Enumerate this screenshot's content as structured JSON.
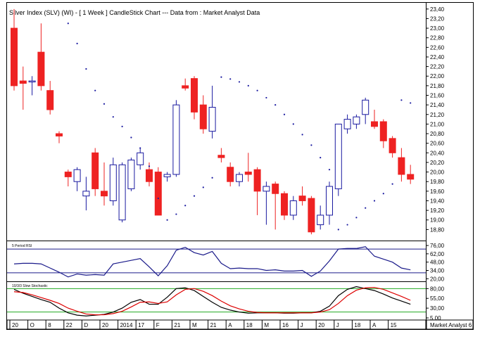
{
  "header": {
    "title": "Silver Index (SLV) (WI) -  [ 1 Week ] CandleStick Chart --- Data from : Market Analyst Data"
  },
  "colors": {
    "bull": "#1a1aa0",
    "bear": "#ee2222",
    "dots": "#1a1aa0",
    "rsi": "#1a1a8a",
    "rsi_levels": "#1a1a8a",
    "stoch_k": "#000000",
    "stoch_d": "#dd0000",
    "stoch_levels": "#22aa22",
    "border": "#000000"
  },
  "chart_data": [
    {
      "type": "candlestick",
      "ylim": [
        18.6,
        23.5
      ],
      "y_ticks": [
        "23,40",
        "23,20",
        "23,00",
        "22,80",
        "22,60",
        "22,40",
        "22,20",
        "22,00",
        "21,80",
        "21,60",
        "21,40",
        "21,20",
        "21,00",
        "20,80",
        "20,60",
        "20,40",
        "20,20",
        "20,00",
        "19,80",
        "19,60",
        "19,40",
        "19,20",
        "19,00",
        "18,80"
      ],
      "x_labels": [
        "20",
        "O",
        "8",
        "22",
        "D",
        "20",
        "2014",
        "17",
        "F",
        "21",
        "M",
        "21",
        "A",
        "18",
        "M",
        "16",
        "J",
        "20",
        "J",
        "18",
        "A",
        "15"
      ],
      "candles": [
        {
          "o": 23.0,
          "h": 23.4,
          "l": 21.7,
          "c": 21.8
        },
        {
          "o": 21.9,
          "h": 22.2,
          "l": 21.3,
          "c": 21.85
        },
        {
          "o": 21.9,
          "h": 22.0,
          "l": 21.6,
          "c": 21.9
        },
        {
          "o": 22.5,
          "h": 23.1,
          "l": 21.7,
          "c": 21.8
        },
        {
          "o": 21.7,
          "h": 21.9,
          "l": 21.2,
          "c": 21.3
        },
        {
          "o": 20.8,
          "h": 20.85,
          "l": 20.6,
          "c": 20.75
        },
        {
          "o": 20.0,
          "h": 20.05,
          "l": 19.7,
          "c": 19.9
        },
        {
          "o": 19.8,
          "h": 20.1,
          "l": 19.6,
          "c": 20.05
        },
        {
          "o": 19.5,
          "h": 19.9,
          "l": 19.2,
          "c": 19.6
        },
        {
          "o": 20.4,
          "h": 20.5,
          "l": 19.5,
          "c": 19.65
        },
        {
          "o": 19.6,
          "h": 20.2,
          "l": 19.3,
          "c": 19.5
        },
        {
          "o": 19.4,
          "h": 20.3,
          "l": 19.3,
          "c": 20.15
        },
        {
          "o": 19.0,
          "h": 20.2,
          "l": 18.95,
          "c": 20.15
        },
        {
          "o": 19.65,
          "h": 20.3,
          "l": 19.6,
          "c": 20.25
        },
        {
          "o": 20.15,
          "h": 20.5,
          "l": 20.05,
          "c": 20.4
        },
        {
          "o": 20.05,
          "h": 20.2,
          "l": 19.7,
          "c": 19.8
        },
        {
          "o": 20.0,
          "h": 20.1,
          "l": 19.1,
          "c": 19.1
        },
        {
          "o": 19.9,
          "h": 20.0,
          "l": 19.8,
          "c": 19.95
        },
        {
          "o": 19.95,
          "h": 21.5,
          "l": 19.9,
          "c": 21.4
        },
        {
          "o": 21.8,
          "h": 21.95,
          "l": 21.7,
          "c": 21.75
        },
        {
          "o": 21.95,
          "h": 22.0,
          "l": 21.1,
          "c": 21.25
        },
        {
          "o": 21.4,
          "h": 21.6,
          "l": 20.8,
          "c": 20.9
        },
        {
          "o": 20.85,
          "h": 21.8,
          "l": 20.7,
          "c": 21.35
        },
        {
          "o": 20.35,
          "h": 20.5,
          "l": 20.2,
          "c": 20.3
        },
        {
          "o": 20.1,
          "h": 20.2,
          "l": 19.7,
          "c": 19.8
        },
        {
          "o": 19.8,
          "h": 20.0,
          "l": 19.7,
          "c": 19.95
        },
        {
          "o": 20.0,
          "h": 20.4,
          "l": 19.8,
          "c": 19.95
        },
        {
          "o": 20.05,
          "h": 20.1,
          "l": 19.1,
          "c": 19.6
        },
        {
          "o": 19.6,
          "h": 19.8,
          "l": 18.9,
          "c": 19.7
        },
        {
          "o": 19.75,
          "h": 19.8,
          "l": 18.8,
          "c": 19.55
        },
        {
          "o": 19.55,
          "h": 19.6,
          "l": 19.0,
          "c": 19.1
        },
        {
          "o": 19.1,
          "h": 19.5,
          "l": 19.0,
          "c": 19.4
        },
        {
          "o": 19.5,
          "h": 19.7,
          "l": 19.3,
          "c": 19.4
        },
        {
          "o": 19.45,
          "h": 19.5,
          "l": 18.7,
          "c": 18.75
        },
        {
          "o": 18.9,
          "h": 19.3,
          "l": 18.8,
          "c": 19.1
        },
        {
          "o": 19.1,
          "h": 19.8,
          "l": 18.9,
          "c": 19.7
        },
        {
          "o": 19.65,
          "h": 21.0,
          "l": 19.5,
          "c": 21.0
        },
        {
          "o": 20.9,
          "h": 21.2,
          "l": 20.8,
          "c": 21.1
        },
        {
          "o": 21.0,
          "h": 21.2,
          "l": 20.9,
          "c": 21.15
        },
        {
          "o": 21.2,
          "h": 21.55,
          "l": 21.0,
          "c": 21.5
        },
        {
          "o": 21.05,
          "h": 21.3,
          "l": 20.9,
          "c": 20.95
        },
        {
          "o": 21.05,
          "h": 21.1,
          "l": 20.5,
          "c": 20.65
        },
        {
          "o": 20.7,
          "h": 20.75,
          "l": 20.3,
          "c": 20.4
        },
        {
          "o": 20.3,
          "h": 20.5,
          "l": 19.8,
          "c": 19.95
        },
        {
          "o": 19.95,
          "h": 20.15,
          "l": 19.75,
          "c": 19.85
        }
      ],
      "dots": [
        {
          "i": 6,
          "v": 23.1
        },
        {
          "i": 7,
          "v": 22.68
        },
        {
          "i": 8,
          "v": 22.15
        },
        {
          "i": 9,
          "v": 21.7
        },
        {
          "i": 10,
          "v": 21.42
        },
        {
          "i": 11,
          "v": 21.15
        },
        {
          "i": 12,
          "v": 20.95
        },
        {
          "i": 13,
          "v": 20.72
        },
        {
          "i": 14,
          "v": 20.5
        },
        {
          "i": 15,
          "v": 20.12
        },
        {
          "i": 16,
          "v": 19.45
        },
        {
          "i": 17,
          "v": 19.0
        },
        {
          "i": 18,
          "v": 19.12
        },
        {
          "i": 19,
          "v": 19.3
        },
        {
          "i": 20,
          "v": 19.5
        },
        {
          "i": 21,
          "v": 19.68
        },
        {
          "i": 22,
          "v": 19.88
        },
        {
          "i": 23,
          "v": 21.98
        },
        {
          "i": 24,
          "v": 21.94
        },
        {
          "i": 25,
          "v": 21.88
        },
        {
          "i": 26,
          "v": 21.8
        },
        {
          "i": 27,
          "v": 21.7
        },
        {
          "i": 28,
          "v": 21.55
        },
        {
          "i": 29,
          "v": 21.4
        },
        {
          "i": 30,
          "v": 21.2
        },
        {
          "i": 31,
          "v": 21.0
        },
        {
          "i": 32,
          "v": 20.78
        },
        {
          "i": 33,
          "v": 20.56
        },
        {
          "i": 34,
          "v": 20.3
        },
        {
          "i": 35,
          "v": 20.05
        },
        {
          "i": 36,
          "v": 18.8
        },
        {
          "i": 37,
          "v": 18.9
        },
        {
          "i": 38,
          "v": 19.05
        },
        {
          "i": 39,
          "v": 19.25
        },
        {
          "i": 40,
          "v": 19.4
        },
        {
          "i": 41,
          "v": 19.55
        },
        {
          "i": 42,
          "v": 19.75
        },
        {
          "i": 43,
          "v": 21.5
        },
        {
          "i": 44,
          "v": 21.44
        }
      ]
    },
    {
      "type": "line",
      "title": "5 Period RSI",
      "ylim": [
        18,
        82
      ],
      "y_ticks": [
        "76,00",
        "62,00",
        "48,00",
        "34,00",
        "20,00"
      ],
      "levels": [
        70,
        30
      ],
      "series": [
        {
          "values": [
            45,
            46,
            46,
            45,
            38,
            31,
            23,
            28,
            26,
            27,
            26,
            45,
            48,
            51,
            54,
            40,
            25,
            42,
            68,
            73,
            64,
            60,
            66,
            46,
            37,
            38,
            37,
            37,
            34,
            35,
            33,
            33,
            34,
            24,
            33,
            50,
            70,
            71,
            71,
            74,
            58,
            53,
            48,
            38,
            35
          ]
        }
      ]
    },
    {
      "type": "line",
      "title": "10/3/3 Slow Stochastic",
      "ylim": [
        5,
        95
      ],
      "y_ticks": [
        "80,00",
        "55,00",
        "30,00",
        "5,00"
      ],
      "levels": [
        80,
        20
      ],
      "series": [
        {
          "values": [
            78,
            68,
            60,
            52,
            45,
            30,
            18,
            12,
            10,
            12,
            14,
            20,
            30,
            45,
            52,
            40,
            40,
            58,
            80,
            82,
            75,
            60,
            45,
            32,
            25,
            20,
            17,
            18,
            18,
            18,
            17,
            17,
            18,
            18,
            22,
            35,
            62,
            78,
            85,
            80,
            75,
            66,
            56,
            48,
            40
          ]
        },
        {
          "values": [
            72,
            70,
            64,
            57,
            50,
            42,
            30,
            22,
            15,
            13,
            13,
            16,
            22,
            33,
            45,
            46,
            42,
            46,
            64,
            78,
            80,
            73,
            62,
            48,
            36,
            28,
            22,
            19,
            18,
            18,
            18,
            18,
            18,
            18,
            20,
            26,
            42,
            62,
            76,
            82,
            83,
            78,
            69,
            60,
            50
          ]
        }
      ]
    }
  ],
  "footer": {
    "brand": "Market Analyst 6"
  }
}
